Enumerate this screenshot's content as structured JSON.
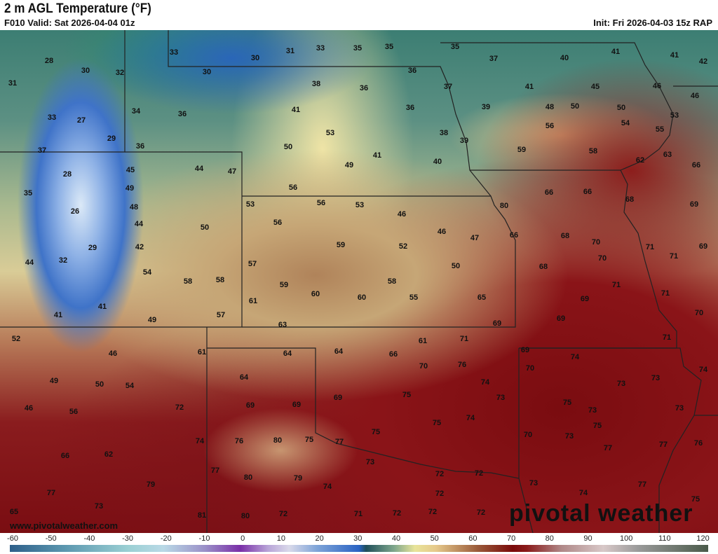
{
  "header": {
    "title": "2 m AGL Temperature (°F)",
    "valid": "F010 Valid: Sat 2026-04-04 01z",
    "init": "Init: Fri 2026-04-03 15z RAP"
  },
  "map": {
    "temperatures": [
      "28",
      "30",
      "32",
      "31",
      "33",
      "30",
      "31",
      "33",
      "35",
      "35",
      "35",
      "37",
      "40",
      "41",
      "41",
      "42",
      "30",
      "36",
      "38",
      "36",
      "37",
      "41",
      "45",
      "46",
      "46",
      "34",
      "33",
      "27",
      "36",
      "41",
      "36",
      "39",
      "48",
      "50",
      "50",
      "53",
      "29",
      "36",
      "37",
      "53",
      "38",
      "56",
      "54",
      "55",
      "50",
      "39",
      "41",
      "59",
      "58",
      "63",
      "62",
      "28",
      "45",
      "44",
      "47",
      "49",
      "40",
      "66",
      "35",
      "49",
      "56",
      "66",
      "66",
      "68",
      "48",
      "53",
      "56",
      "53",
      "80",
      "69",
      "26",
      "44",
      "50",
      "56",
      "46",
      "46",
      "47",
      "66",
      "68",
      "70",
      "71",
      "69",
      "29",
      "42",
      "59",
      "52",
      "70",
      "71",
      "44",
      "32",
      "57",
      "50",
      "68",
      "54",
      "58",
      "58",
      "59",
      "58",
      "71",
      "71",
      "60",
      "60",
      "55",
      "65",
      "69",
      "61",
      "41",
      "41",
      "49",
      "57",
      "69",
      "70",
      "63",
      "69",
      "52",
      "61",
      "71",
      "71",
      "46",
      "61",
      "64",
      "64",
      "66",
      "69",
      "74",
      "70",
      "76",
      "70",
      "74",
      "49",
      "64",
      "50",
      "54",
      "74",
      "73",
      "73",
      "75",
      "69",
      "73",
      "75",
      "69",
      "69",
      "46",
      "72",
      "56",
      "73",
      "73",
      "75",
      "74",
      "75",
      "75",
      "70",
      "73",
      "77",
      "77",
      "76",
      "74",
      "76",
      "80",
      "75",
      "77",
      "66",
      "62",
      "73",
      "77",
      "72",
      "72",
      "80",
      "79",
      "74",
      "73",
      "79",
      "77",
      "72",
      "74",
      "77",
      "75",
      "73",
      "65",
      "81",
      "80",
      "72",
      "71",
      "72",
      "72",
      "72"
    ]
  },
  "watermark": "www.pivotalweather.com",
  "logo": "pivotal weather",
  "colorbar": {
    "unit": "°F",
    "ticks": [
      "-60",
      "-50",
      "-40",
      "-30",
      "-20",
      "-10",
      "0",
      "10",
      "20",
      "30",
      "40",
      "50",
      "60",
      "70",
      "80",
      "90",
      "100",
      "110",
      "120"
    ]
  }
}
